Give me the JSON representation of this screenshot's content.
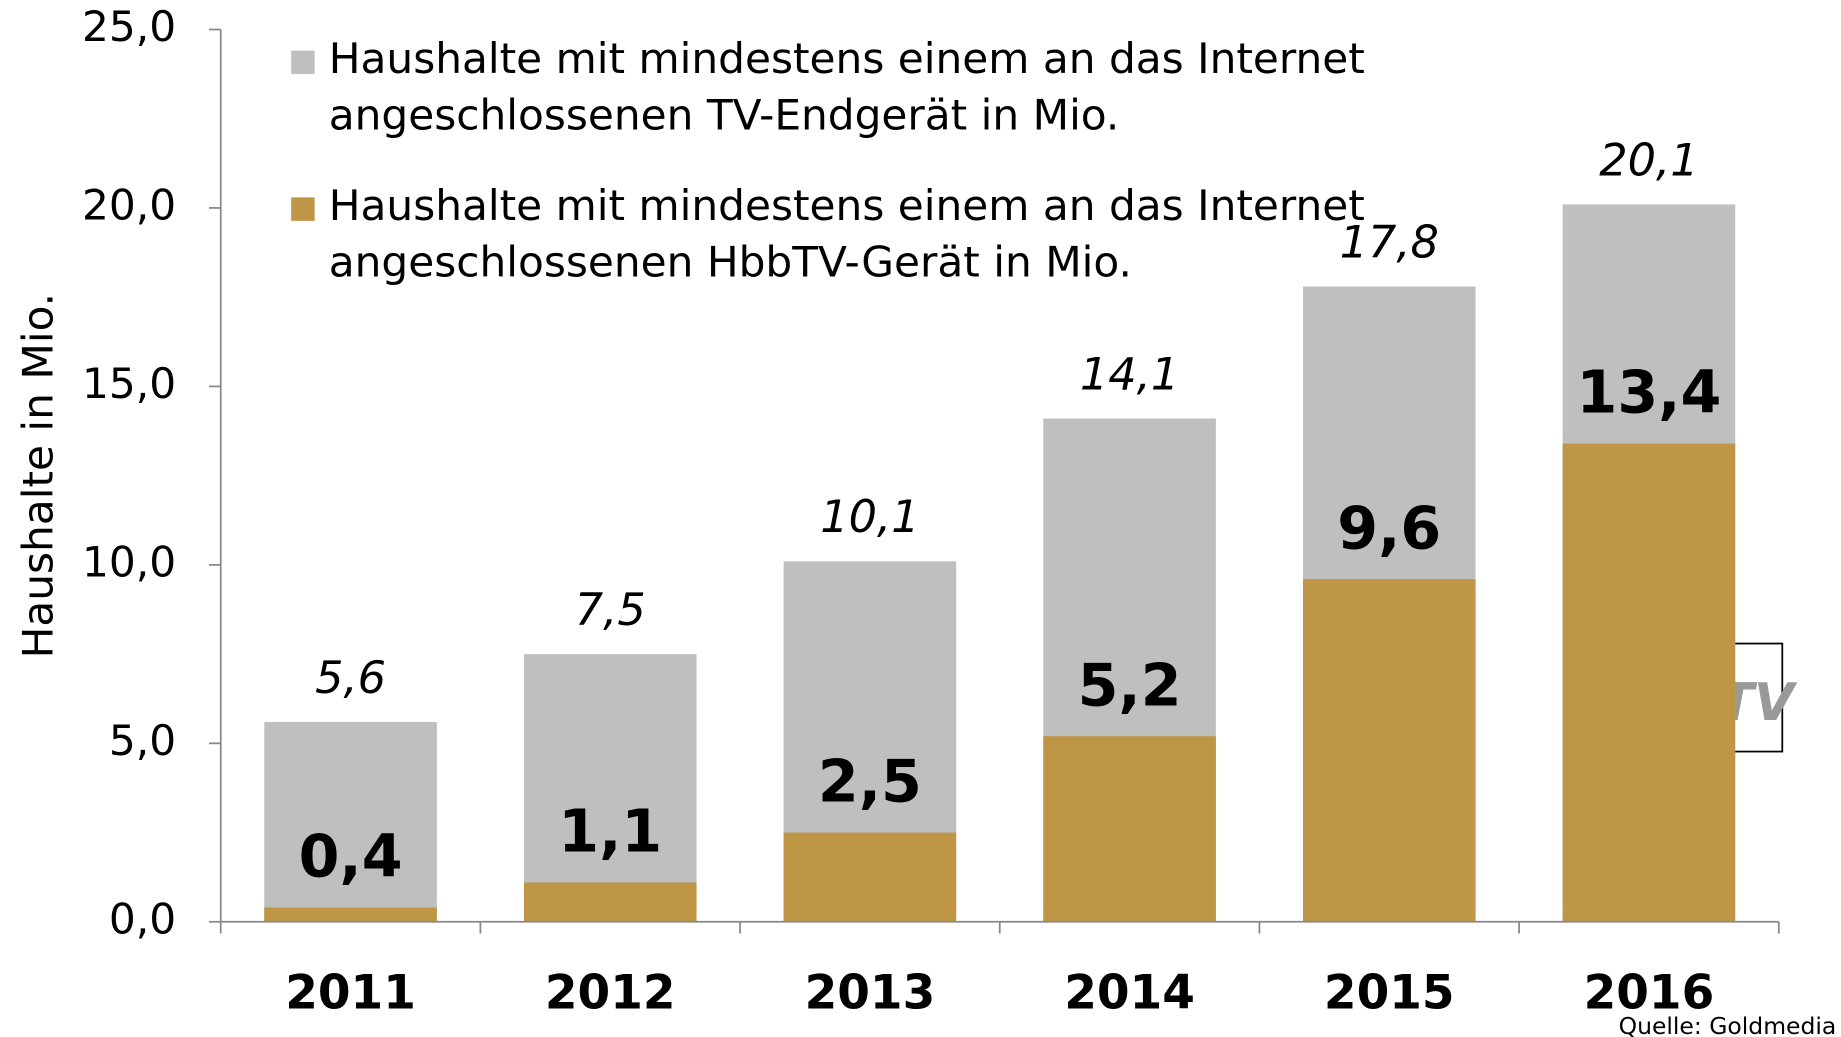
{
  "chart_data": {
    "type": "bar",
    "ylabel": "Haushalte in Mio.",
    "categories": [
      "2011",
      "2012",
      "2013",
      "2014",
      "2015",
      "2016"
    ],
    "series": [
      {
        "name": "Haushalte mit mindestens einem an das Internet angeschlossenen TV-Endgerät in Mio.",
        "color": "#bfbfbf",
        "values": [
          5.6,
          7.5,
          10.1,
          14.1,
          17.8,
          20.1
        ],
        "value_labels": [
          "5,6",
          "7,5",
          "10,1",
          "14,1",
          "17,8",
          "20,1"
        ]
      },
      {
        "name": "Haushalte mit mindestens einem an das Internet angeschlossenen HbbTV-Gerät in Mio.",
        "color": "#be9645",
        "values": [
          0.4,
          1.1,
          2.5,
          5.2,
          9.6,
          13.4
        ],
        "value_labels": [
          "0,4",
          "1,1",
          "2,5",
          "5,2",
          "9,6",
          "13,4"
        ]
      }
    ],
    "ylim": [
      0,
      25
    ],
    "yticks": [
      {
        "value": 0,
        "label": "0,0"
      },
      {
        "value": 5,
        "label": "5,0"
      },
      {
        "value": 10,
        "label": "10,0"
      },
      {
        "value": 15,
        "label": "15,0"
      },
      {
        "value": 20,
        "label": "20,0"
      },
      {
        "value": 25,
        "label": "25,0"
      }
    ],
    "legend_position": "upper left",
    "logo": "HbbTV",
    "source": "Quelle: Goldmedia"
  }
}
